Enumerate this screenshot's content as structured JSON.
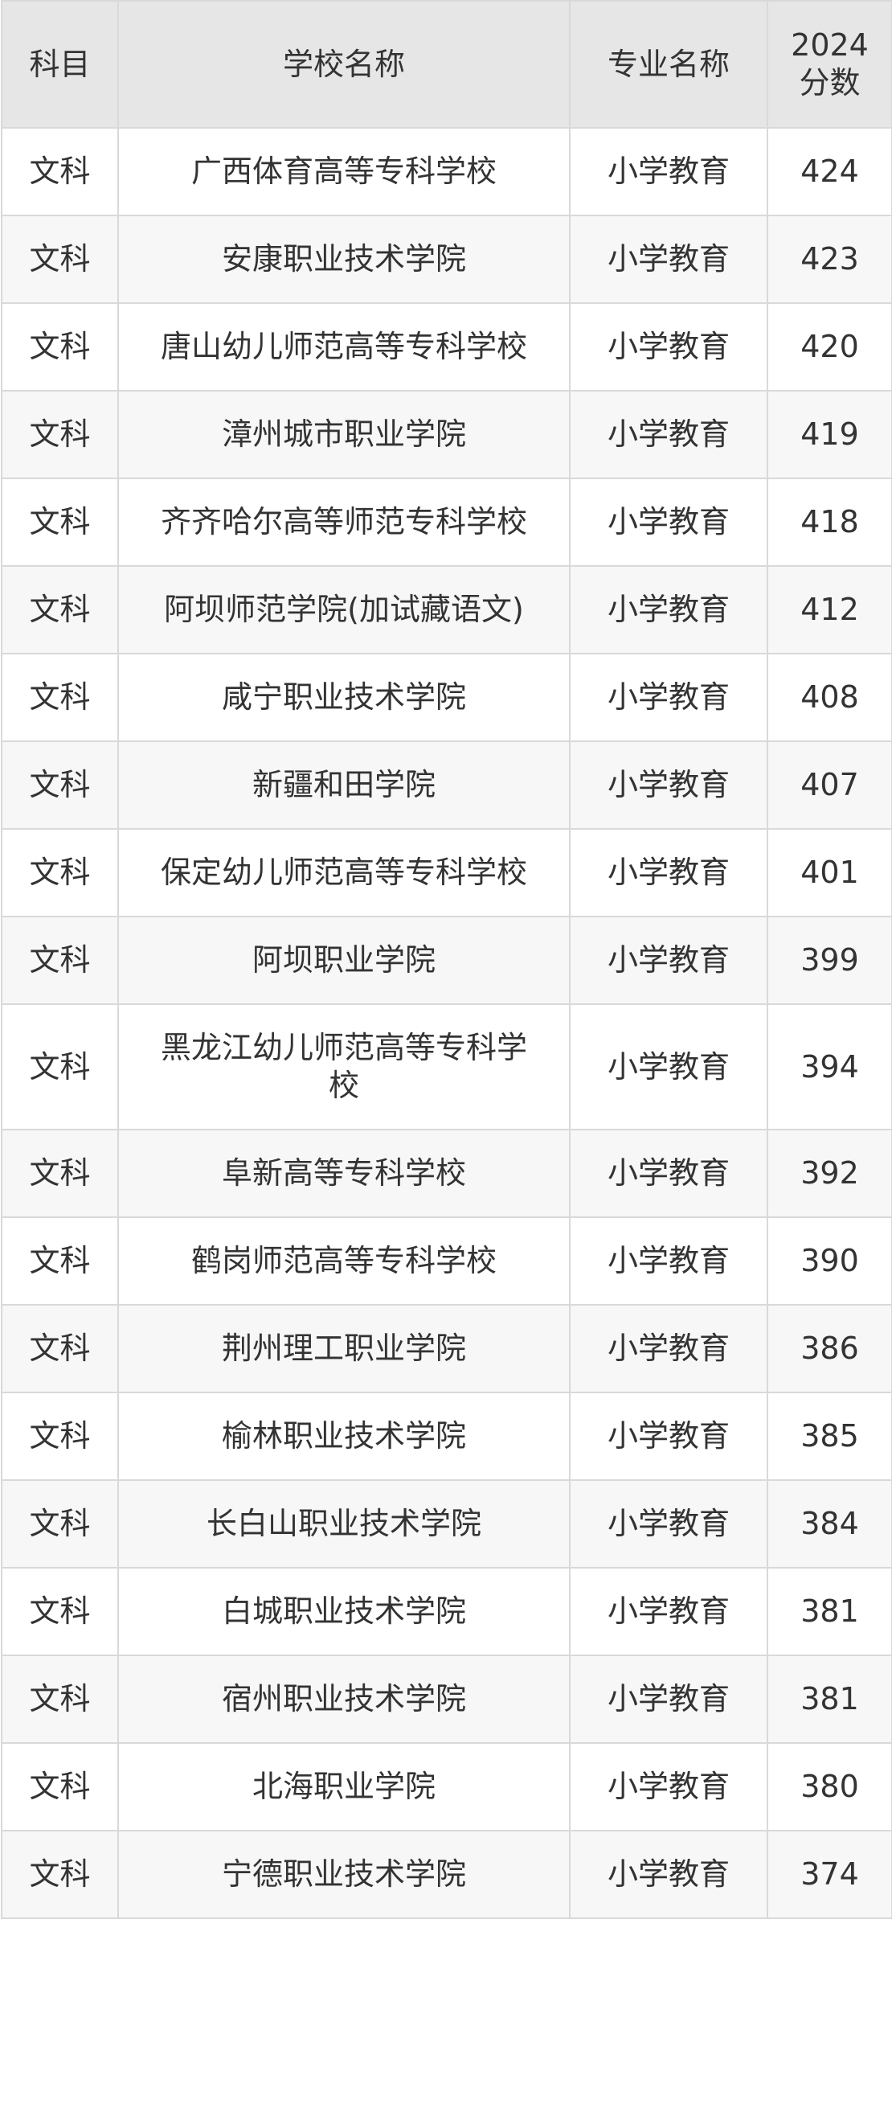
{
  "headers": [
    "科目",
    "学校名称",
    "专业名称",
    "2024\n分数"
  ],
  "header_score_line1": "2024",
  "header_score_line2": "分数",
  "rows": [
    {
      "subject": "文科",
      "school": "广西体育高等专科学校",
      "major": "小学教育",
      "score": "424"
    },
    {
      "subject": "文科",
      "school": "安康职业技术学院",
      "major": "小学教育",
      "score": "423"
    },
    {
      "subject": "文科",
      "school": "唐山幼儿师范高等专科学校",
      "major": "小学教育",
      "score": "420"
    },
    {
      "subject": "文科",
      "school": "漳州城市职业学院",
      "major": "小学教育",
      "score": "419"
    },
    {
      "subject": "文科",
      "school": "齐齐哈尔高等师范专科学校",
      "major": "小学教育",
      "score": "418"
    },
    {
      "subject": "文科",
      "school": "阿坝师范学院(加试藏语文)",
      "major": "小学教育",
      "score": "412"
    },
    {
      "subject": "文科",
      "school": "咸宁职业技术学院",
      "major": "小学教育",
      "score": "408"
    },
    {
      "subject": "文科",
      "school": "新疆和田学院",
      "major": "小学教育",
      "score": "407"
    },
    {
      "subject": "文科",
      "school": "保定幼儿师范高等专科学校",
      "major": "小学教育",
      "score": "401"
    },
    {
      "subject": "文科",
      "school": "阿坝职业学院",
      "major": "小学教育",
      "score": "399"
    },
    {
      "subject": "文科",
      "school": "黑龙江幼儿师范高等专科学校",
      "major": "小学教育",
      "score": "394"
    },
    {
      "subject": "文科",
      "school": "阜新高等专科学校",
      "major": "小学教育",
      "score": "392"
    },
    {
      "subject": "文科",
      "school": "鹤岗师范高等专科学校",
      "major": "小学教育",
      "score": "390"
    },
    {
      "subject": "文科",
      "school": "荆州理工职业学院",
      "major": "小学教育",
      "score": "386"
    },
    {
      "subject": "文科",
      "school": "榆林职业技术学院",
      "major": "小学教育",
      "score": "385"
    },
    {
      "subject": "文科",
      "school": "长白山职业技术学院",
      "major": "小学教育",
      "score": "384"
    },
    {
      "subject": "文科",
      "school": "白城职业技术学院",
      "major": "小学教育",
      "score": "381"
    },
    {
      "subject": "文科",
      "school": "宿州职业技术学院",
      "major": "小学教育",
      "score": "381"
    },
    {
      "subject": "文科",
      "school": "北海职业学院",
      "major": "小学教育",
      "score": "380"
    },
    {
      "subject": "文科",
      "school": "宁德职业技术学院",
      "major": "小学教育",
      "score": "374"
    }
  ]
}
